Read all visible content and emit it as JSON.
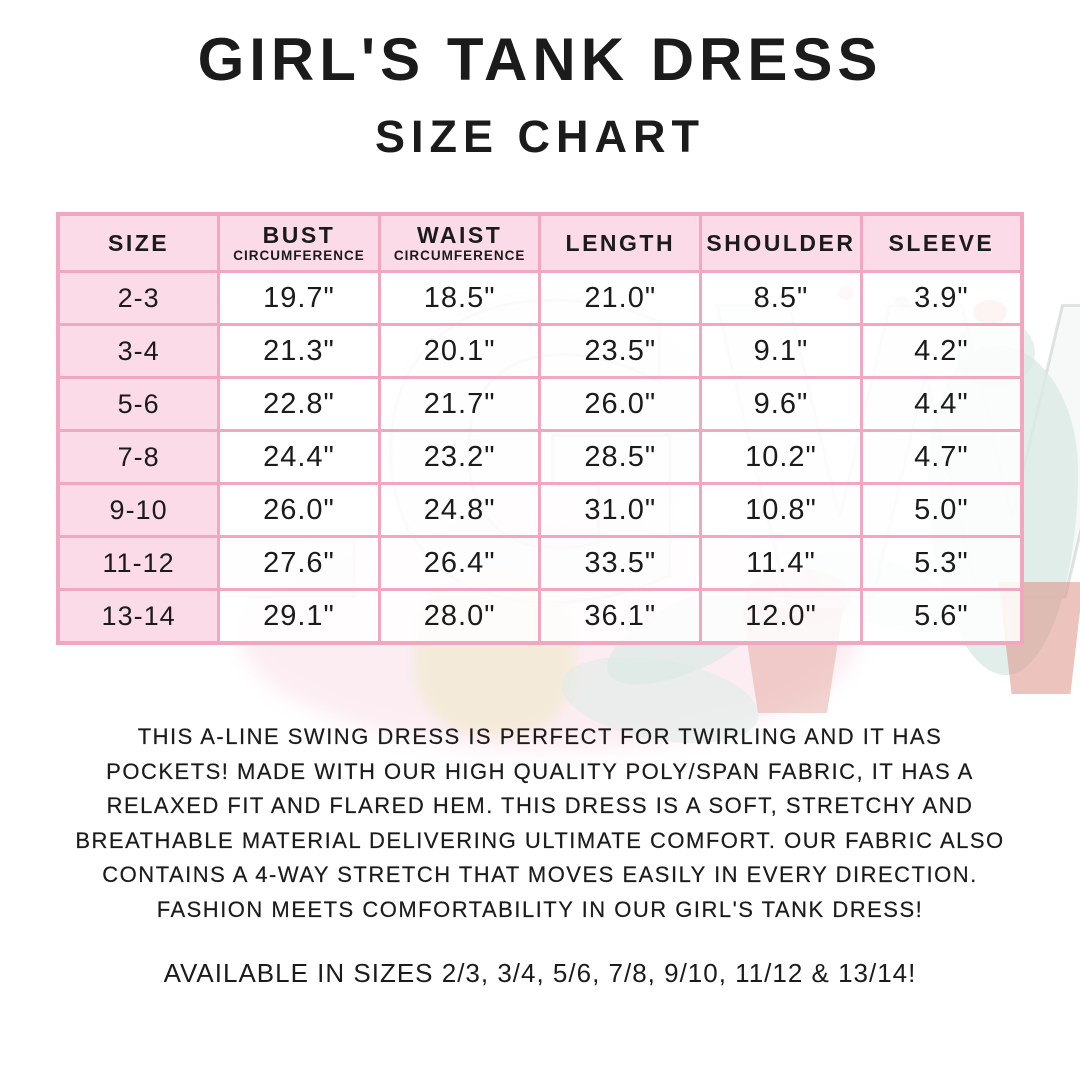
{
  "title": "GIRL'S TANK DRESS",
  "subtitle": "SIZE CHART",
  "watermark": {
    "text": "LGW"
  },
  "colors": {
    "table_border": "#f2a6bf",
    "header_fill": "#fbdbe7",
    "text": "#1b1b1b",
    "watermark_teal": "#dbeae5",
    "watermark_pink": "#fae2ea"
  },
  "table": {
    "headers": [
      {
        "label": "SIZE",
        "sub": ""
      },
      {
        "label": "BUST",
        "sub": "CIRCUMFERENCE"
      },
      {
        "label": "WAIST",
        "sub": "CIRCUMFERENCE"
      },
      {
        "label": "LENGTH",
        "sub": ""
      },
      {
        "label": "SHOULDER",
        "sub": ""
      },
      {
        "label": "SLEEVE",
        "sub": ""
      }
    ]
  },
  "chart_data": {
    "type": "table",
    "title": "GIRL'S TANK DRESS SIZE CHART",
    "columns": [
      "SIZE",
      "BUST CIRCUMFERENCE",
      "WAIST CIRCUMFERENCE",
      "LENGTH",
      "SHOULDER",
      "SLEEVE"
    ],
    "rows": [
      [
        "2-3",
        "19.7\"",
        "18.5\"",
        "21.0\"",
        "8.5\"",
        "3.9\""
      ],
      [
        "3-4",
        "21.3\"",
        "20.1\"",
        "23.5\"",
        "9.1\"",
        "4.2\""
      ],
      [
        "5-6",
        "22.8\"",
        "21.7\"",
        "26.0\"",
        "9.6\"",
        "4.4\""
      ],
      [
        "7-8",
        "24.4\"",
        "23.2\"",
        "28.5\"",
        "10.2\"",
        "4.7\""
      ],
      [
        "9-10",
        "26.0\"",
        "24.8\"",
        "31.0\"",
        "10.8\"",
        "5.0\""
      ],
      [
        "11-12",
        "27.6\"",
        "26.4\"",
        "33.5\"",
        "11.4\"",
        "5.3\""
      ],
      [
        "13-14",
        "29.1\"",
        "28.0\"",
        "36.1\"",
        "12.0\"",
        "5.6\""
      ]
    ]
  },
  "description": {
    "lines": [
      "THIS A-LINE SWING DRESS IS PERFECT FOR TWIRLING AND IT HAS",
      "POCKETS! MADE WITH OUR HIGH QUALITY POLY/SPAN FABRIC, IT HAS A",
      "RELAXED FIT AND FLARED HEM. THIS DRESS IS A SOFT, STRETCHY AND",
      "BREATHABLE MATERIAL DELIVERING ULTIMATE COMFORT. OUR FABRIC ALSO",
      "CONTAINS A 4-WAY STRETCH THAT MOVES EASILY IN EVERY DIRECTION.",
      "FASHION MEETS COMFORTABILITY IN OUR GIRL'S TANK DRESS!"
    ]
  },
  "availability": "AVAILABLE IN SIZES 2/3, 3/4, 5/6, 7/8, 9/10, 11/12 & 13/14!"
}
